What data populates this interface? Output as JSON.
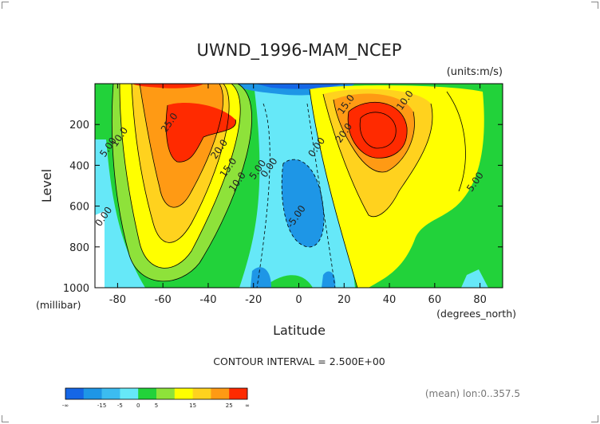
{
  "chart_data": {
    "type": "heatmap",
    "title": "UWND_1996-MAM_NCEP",
    "units": "(units:m/s)",
    "xlabel": "Latitude",
    "xunits": "(degrees_north)",
    "ylabel": "Level",
    "yunits": "(millibar)",
    "xlim": [
      -90,
      90
    ],
    "ylim": [
      1000,
      0
    ],
    "x_ticks": [
      -80,
      -60,
      -40,
      -20,
      0,
      20,
      40,
      60,
      80
    ],
    "y_ticks": [
      200,
      400,
      600,
      800,
      1000
    ],
    "contour_interval_text": "CONTOUR INTERVAL = 2.500E+00",
    "footer_text": "(mean) lon:0..357.5",
    "contour_labels": [
      {
        "text": "25.0",
        "x": -56,
        "y": 200
      },
      {
        "text": "20.0",
        "x": -34,
        "y": 330
      },
      {
        "text": "15.0",
        "x": -30,
        "y": 420
      },
      {
        "text": "10.0",
        "x": -26,
        "y": 490
      },
      {
        "text": "5.00",
        "x": -17,
        "y": 430
      },
      {
        "text": "0.00",
        "x": -12,
        "y": 420
      },
      {
        "text": "10.0",
        "x": -78,
        "y": 270
      },
      {
        "text": "5.00",
        "x": -83,
        "y": 320
      },
      {
        "text": "0.00",
        "x": -85,
        "y": 660
      },
      {
        "text": "-5.00",
        "x": 0,
        "y": 660
      },
      {
        "text": "0.00",
        "x": 9,
        "y": 320
      },
      {
        "text": "15.0",
        "x": 22,
        "y": 110
      },
      {
        "text": "20.0",
        "x": 21,
        "y": 250
      },
      {
        "text": "10.0",
        "x": 48,
        "y": 90
      },
      {
        "text": "5.00",
        "x": 79,
        "y": 490
      }
    ],
    "colorbar": {
      "colors": [
        "#1566e6",
        "#1e96e6",
        "#3cbcf0",
        "#66e8f8",
        "#22d23a",
        "#8ee23a",
        "#ffff00",
        "#ffd21e",
        "#ff9a14",
        "#ff2a00"
      ],
      "labels": [
        "-∞",
        "-15",
        "-5",
        "0",
        "5",
        "15",
        "25",
        "∞"
      ]
    }
  }
}
